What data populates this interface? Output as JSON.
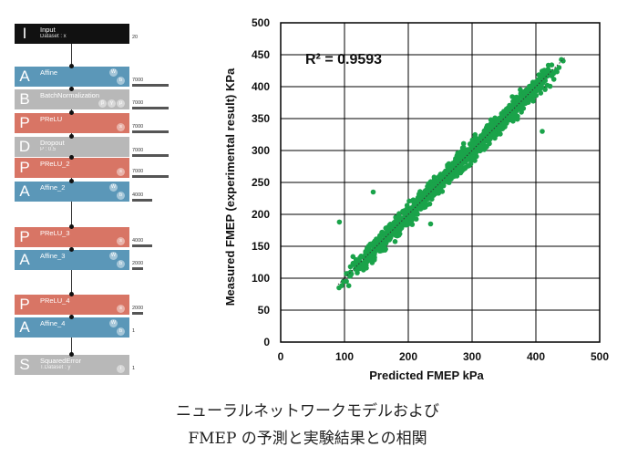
{
  "network": {
    "layers": [
      {
        "letter": "I",
        "name": "Input",
        "sub": "Dataset : x",
        "color": "#111111",
        "size": "20",
        "bar": 0,
        "circles": [],
        "top": 26
      },
      {
        "letter": "A",
        "name": "Affine",
        "sub": "",
        "color": "#5b97b8",
        "size": "7000",
        "bar": 40,
        "circles": [
          "W",
          "b"
        ],
        "top": 73
      },
      {
        "letter": "B",
        "name": "BatchNormalization",
        "sub": "",
        "color": "#b8b8b8",
        "size": "7000",
        "bar": 40,
        "circles": [
          "β",
          "γ",
          "μ"
        ],
        "top": 98
      },
      {
        "letter": "P",
        "name": "PReLU",
        "sub": "",
        "color": "#d87565",
        "size": "7000",
        "bar": 40,
        "circles": [
          "s"
        ],
        "top": 124
      },
      {
        "letter": "D",
        "name": "Dropout",
        "sub": "P : 0.5",
        "color": "#b8b8b8",
        "size": "7000",
        "bar": 40,
        "circles": [],
        "top": 150
      },
      {
        "letter": "P",
        "name": "PReLU_2",
        "sub": "",
        "color": "#d87565",
        "size": "7000",
        "bar": 40,
        "circles": [
          "s"
        ],
        "top": 173
      },
      {
        "letter": "A",
        "name": "Affine_2",
        "sub": "",
        "color": "#5b97b8",
        "size": "4000",
        "bar": 22,
        "circles": [
          "W",
          "b"
        ],
        "top": 199
      },
      {
        "letter": "P",
        "name": "PReLU_3",
        "sub": "",
        "color": "#d87565",
        "size": "4000",
        "bar": 22,
        "circles": [
          "s"
        ],
        "top": 249
      },
      {
        "letter": "A",
        "name": "Affine_3",
        "sub": "",
        "color": "#5b97b8",
        "size": "2000",
        "bar": 12,
        "circles": [
          "W",
          "b"
        ],
        "top": 274
      },
      {
        "letter": "P",
        "name": "PReLU_4",
        "sub": "",
        "color": "#d87565",
        "size": "2000",
        "bar": 12,
        "circles": [
          "s"
        ],
        "top": 323
      },
      {
        "letter": "A",
        "name": "Affine_4",
        "sub": "",
        "color": "#5b97b8",
        "size": "1",
        "bar": 0,
        "circles": [
          "W",
          "b"
        ],
        "top": 348
      },
      {
        "letter": "S",
        "name": "SquaredError",
        "sub": "T.Dataset : y",
        "color": "#b8b8b8",
        "size": "1",
        "bar": 0,
        "circles": [
          "i"
        ],
        "top": 389
      }
    ]
  },
  "chart_data": {
    "type": "scatter",
    "title": "",
    "xlabel": "Predicted FMEP kPa",
    "ylabel": "Measured FMEP (experimental  result) KPa",
    "xlim": [
      0,
      500
    ],
    "ylim": [
      0,
      500
    ],
    "xticks": [
      0,
      100,
      200,
      300,
      400,
      500
    ],
    "yticks": [
      0,
      50,
      100,
      150,
      200,
      250,
      300,
      350,
      400,
      450,
      500
    ],
    "grid": true,
    "annotation": "R² = 0.9593",
    "point_color": "#1aa34a",
    "trend": {
      "style": "dotted",
      "from": [
        90,
        90
      ],
      "to": [
        445,
        445
      ]
    },
    "series": [
      {
        "x_range": [
          90,
          445
        ],
        "slope": 1.0,
        "spread": 12,
        "n": 1100,
        "outliers": [
          [
            92,
            188
          ],
          [
            145,
            235
          ],
          [
            235,
            185
          ],
          [
            385,
            395
          ],
          [
            400,
            405
          ],
          [
            410,
            330
          ]
        ]
      }
    ]
  },
  "caption": {
    "line1": "ニューラルネットワークモデルおよび",
    "line2": "FMEP の予測と実験結果との相関"
  }
}
